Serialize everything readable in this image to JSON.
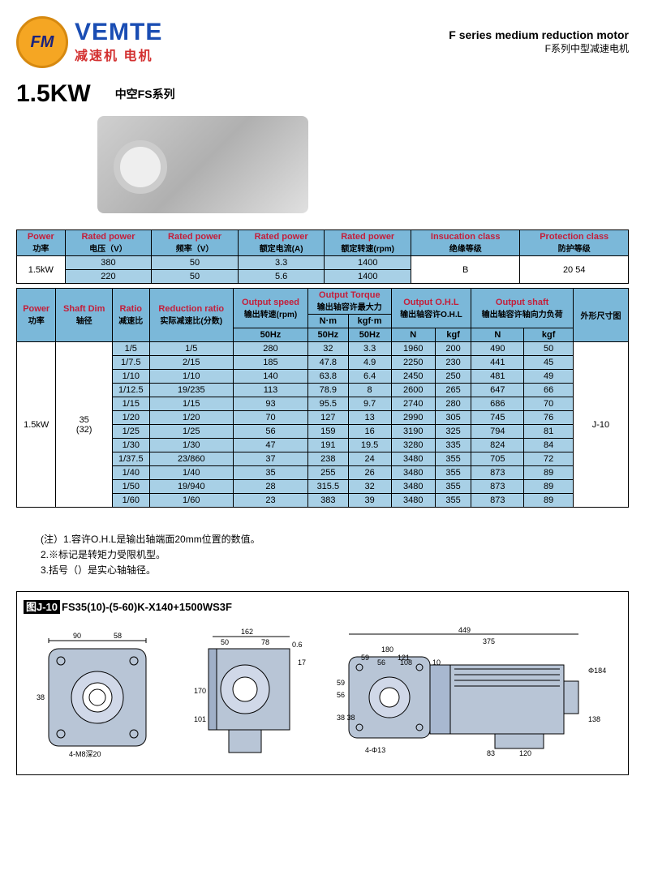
{
  "logo": {
    "mark": "FM",
    "brand_en": "VEMTE",
    "brand_cn": "减速机 电机"
  },
  "header": {
    "title_en": "F series medium reduction motor",
    "title_cn": "F系列中型减速电机"
  },
  "power_section": {
    "power": "1.5KW",
    "series": "中空FS系列"
  },
  "table1": {
    "headers": {
      "power": {
        "en": "Power",
        "cn": "功率"
      },
      "voltage": {
        "en": "Rated power",
        "cn": "电压（V）"
      },
      "freq": {
        "en": "Rated power",
        "cn": "频率（V）"
      },
      "current": {
        "en": "Rated power",
        "cn": "额定电流(A)"
      },
      "rpm": {
        "en": "Rated power",
        "cn": "额定转速(rpm)"
      },
      "insul": {
        "en": "Insucation class",
        "cn": "绝缘等级"
      },
      "prot": {
        "en": "Protection class",
        "cn": "防护等级"
      }
    },
    "power_val": "1.5kW",
    "rows": [
      {
        "v": "380",
        "f": "50",
        "c": "3.3",
        "r": "1400"
      },
      {
        "v": "220",
        "f": "50",
        "c": "5.6",
        "r": "1400"
      }
    ],
    "insul_val": "B",
    "prot_val": "20  54"
  },
  "table2": {
    "headers": {
      "power": {
        "en": "Power",
        "cn": "功率"
      },
      "shaft": {
        "en": "Shaft Dim",
        "cn": "轴径"
      },
      "ratio": {
        "en": "Ratio",
        "cn": "减速比"
      },
      "rratio": {
        "en": "Reduction ratio",
        "cn": "实际减速比(分数)"
      },
      "speed": {
        "en": "Output speed",
        "cn": "输出转速(rpm)"
      },
      "torque": {
        "en": "Output Torque",
        "cn": "输出轴容许最大力"
      },
      "ohl": {
        "en": "Output O.H.L",
        "cn": "输出轴容许O.H.L"
      },
      "oshaft": {
        "en": "Output shaft",
        "cn": "输出轴容许轴向力负荷"
      },
      "dim": "外形尺寸图"
    },
    "sub": {
      "nm": "N·m",
      "kgfm": "kgf·m",
      "hz": "50Hz",
      "n": "N",
      "kgf": "kgf"
    },
    "power_val": "1.5kW",
    "shaft_val": "35\n(32)",
    "dim_val": "J-10",
    "rows": [
      {
        "ratio": "1/5",
        "rr": "1/5",
        "spd": "280",
        "nm": "32",
        "kgfm": "3.3",
        "ohln": "1960",
        "ohlk": "200",
        "osn": "490",
        "osk": "50"
      },
      {
        "ratio": "1/7.5",
        "rr": "2/15",
        "spd": "185",
        "nm": "47.8",
        "kgfm": "4.9",
        "ohln": "2250",
        "ohlk": "230",
        "osn": "441",
        "osk": "45"
      },
      {
        "ratio": "1/10",
        "rr": "1/10",
        "spd": "140",
        "nm": "63.8",
        "kgfm": "6.4",
        "ohln": "2450",
        "ohlk": "250",
        "osn": "481",
        "osk": "49"
      },
      {
        "ratio": "1/12.5",
        "rr": "19/235",
        "spd": "113",
        "nm": "78.9",
        "kgfm": "8",
        "ohln": "2600",
        "ohlk": "265",
        "osn": "647",
        "osk": "66"
      },
      {
        "ratio": "1/15",
        "rr": "1/15",
        "spd": "93",
        "nm": "95.5",
        "kgfm": "9.7",
        "ohln": "2740",
        "ohlk": "280",
        "osn": "686",
        "osk": "70"
      },
      {
        "ratio": "1/20",
        "rr": "1/20",
        "spd": "70",
        "nm": "127",
        "kgfm": "13",
        "ohln": "2990",
        "ohlk": "305",
        "osn": "745",
        "osk": "76"
      },
      {
        "ratio": "1/25",
        "rr": "1/25",
        "spd": "56",
        "nm": "159",
        "kgfm": "16",
        "ohln": "3190",
        "ohlk": "325",
        "osn": "794",
        "osk": "81"
      },
      {
        "ratio": "1/30",
        "rr": "1/30",
        "spd": "47",
        "nm": "191",
        "kgfm": "19.5",
        "ohln": "3280",
        "ohlk": "335",
        "osn": "824",
        "osk": "84"
      },
      {
        "ratio": "1/37.5",
        "rr": "23/860",
        "spd": "37",
        "nm": "238",
        "kgfm": "24",
        "ohln": "3480",
        "ohlk": "355",
        "osn": "705",
        "osk": "72"
      },
      {
        "ratio": "1/40",
        "rr": "1/40",
        "spd": "35",
        "nm": "255",
        "kgfm": "26",
        "ohln": "3480",
        "ohlk": "355",
        "osn": "873",
        "osk": "89"
      },
      {
        "ratio": "1/50",
        "rr": "19/940",
        "spd": "28",
        "nm": "315.5",
        "kgfm": "32",
        "ohln": "3480",
        "ohlk": "355",
        "osn": "873",
        "osk": "89"
      },
      {
        "ratio": "1/60",
        "rr": "1/60",
        "spd": "23",
        "nm": "383",
        "kgfm": "39",
        "ohln": "3480",
        "ohlk": "355",
        "osn": "873",
        "osk": "89"
      }
    ]
  },
  "notes": {
    "n1": "(注）1.容许O.H.L是输出轴端面20mm位置的数值。",
    "n2": "2.※标记是转矩力受限机型。",
    "n3": "3.括号（）是实心轴轴径。"
  },
  "drawing": {
    "prefix": "图J-10",
    "model": "FS35(10)-(5-60)K-X140+1500WS3F",
    "dims": {
      "d90": "90",
      "d58": "58",
      "d38": "38",
      "d4m8": "4-M8深20",
      "d162": "162",
      "d50": "50",
      "d78": "78",
      "d06": "0.6",
      "d17": "17",
      "d170": "170",
      "d101": "101",
      "d449": "449",
      "d375": "375",
      "d180": "180",
      "d121": "121",
      "d108": "108",
      "d10": "10",
      "d59": "59",
      "d56": "56",
      "d3838": "38 38",
      "d4p13": "4-Φ13",
      "d83": "83",
      "d120": "120",
      "d184": "Φ184",
      "d138": "138"
    }
  }
}
